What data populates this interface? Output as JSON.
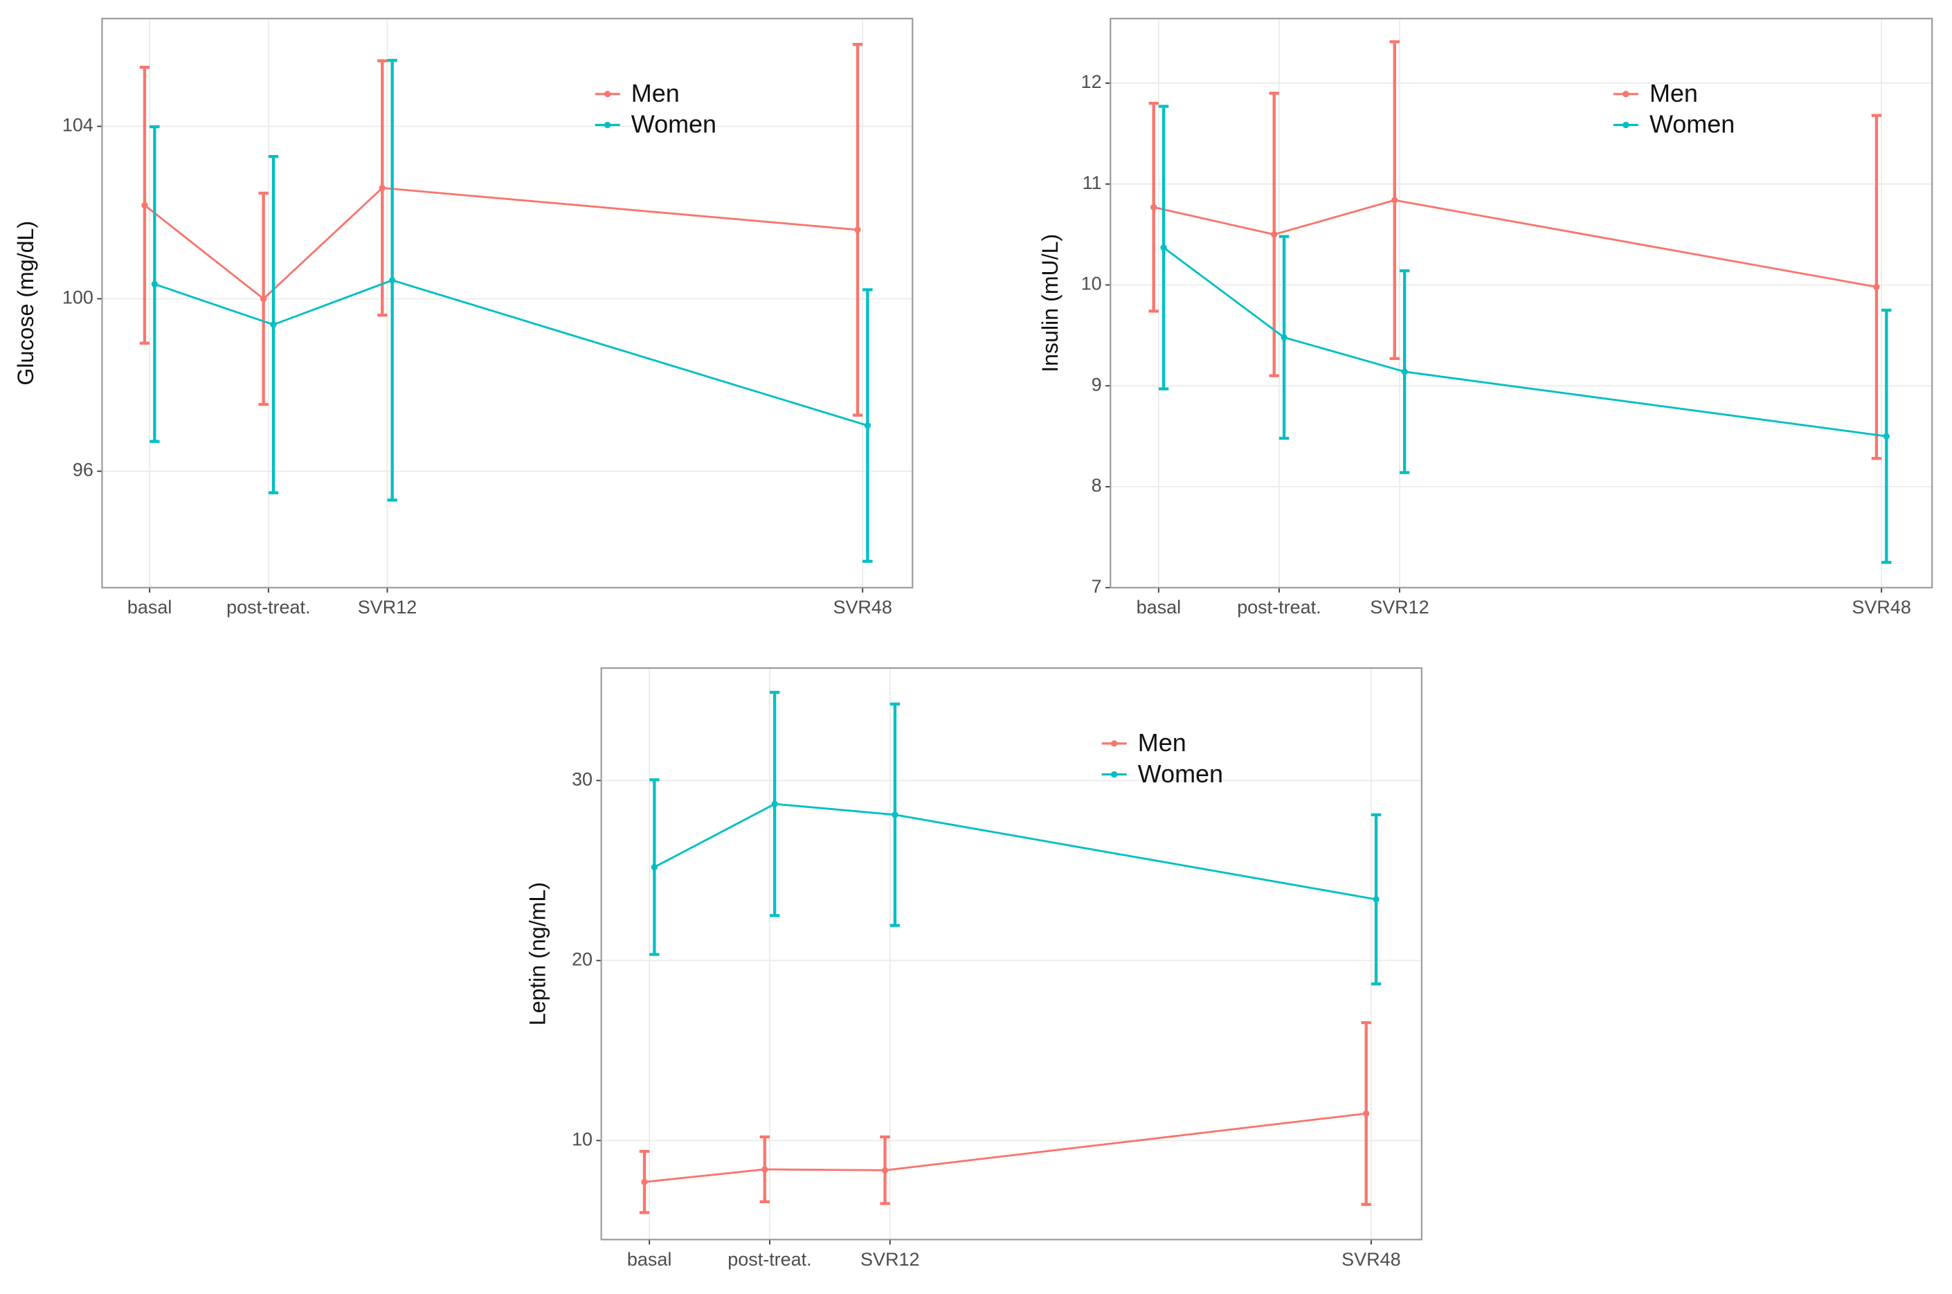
{
  "chart_data": [
    {
      "type": "line",
      "ylabel": "Glucose (mg/dL)",
      "x": [
        0,
        1,
        2,
        6
      ],
      "xticks": [
        {
          "value": 0,
          "label": "basal"
        },
        {
          "value": 1,
          "label": "post-treat."
        },
        {
          "value": 2,
          "label": "SVR12"
        },
        {
          "value": 6,
          "label": "SVR48"
        }
      ],
      "xlim": [
        -0.4,
        6.42
      ],
      "ylim": [
        93.3,
        106.5
      ],
      "yticks": [
        96,
        100,
        104
      ],
      "grid": true,
      "legend": "top-right",
      "series": [
        {
          "name": "Men",
          "color": "#F8766D",
          "values": [
            102.17,
            100.0,
            102.57,
            101.6
          ],
          "errors": [
            3.2,
            2.45,
            2.95,
            4.3
          ]
        },
        {
          "name": "Women",
          "color": "#00BFC4",
          "values": [
            100.34,
            99.4,
            100.43,
            97.06
          ],
          "errors": [
            3.65,
            3.9,
            5.1,
            3.15
          ]
        }
      ]
    },
    {
      "type": "line",
      "ylabel": "Insulin (mU/L)",
      "x": [
        0,
        1,
        2,
        6
      ],
      "xticks": [
        {
          "value": 0,
          "label": "basal"
        },
        {
          "value": 1,
          "label": "post-treat."
        },
        {
          "value": 2,
          "label": "SVR12"
        },
        {
          "value": 6,
          "label": "SVR48"
        }
      ],
      "xlim": [
        -0.4,
        6.42
      ],
      "ylim": [
        7,
        12.64
      ],
      "yticks": [
        7,
        8,
        9,
        10,
        11,
        12
      ],
      "grid": true,
      "legend": "top-right",
      "series": [
        {
          "name": "Men",
          "color": "#F8766D",
          "values": [
            10.77,
            10.5,
            10.84,
            9.98
          ],
          "errors": [
            1.03,
            1.4,
            1.57,
            1.7
          ]
        },
        {
          "name": "Women",
          "color": "#00BFC4",
          "values": [
            10.37,
            9.48,
            9.14,
            8.5
          ],
          "errors": [
            1.4,
            1.0,
            1.0,
            1.25
          ]
        }
      ]
    },
    {
      "type": "line",
      "ylabel": "Leptin (ng/mL)",
      "x": [
        0,
        1,
        2,
        6
      ],
      "xticks": [
        {
          "value": 0,
          "label": "basal"
        },
        {
          "value": 1,
          "label": "post-treat."
        },
        {
          "value": 2,
          "label": "SVR12"
        },
        {
          "value": 6,
          "label": "SVR48"
        }
      ],
      "xlim": [
        -0.4,
        6.42
      ],
      "ylim": [
        4.5,
        36.25
      ],
      "yticks": [
        10,
        20,
        30
      ],
      "grid": true,
      "legend": "top-right",
      "series": [
        {
          "name": "Men",
          "color": "#F8766D",
          "values": [
            7.7,
            8.4,
            8.35,
            11.5
          ],
          "errors": [
            1.7,
            1.8,
            1.85,
            5.05
          ]
        },
        {
          "name": "Women",
          "color": "#00BFC4",
          "values": [
            25.19,
            28.7,
            28.1,
            23.4
          ],
          "errors": [
            4.85,
            6.2,
            6.15,
            4.7
          ]
        }
      ]
    }
  ]
}
